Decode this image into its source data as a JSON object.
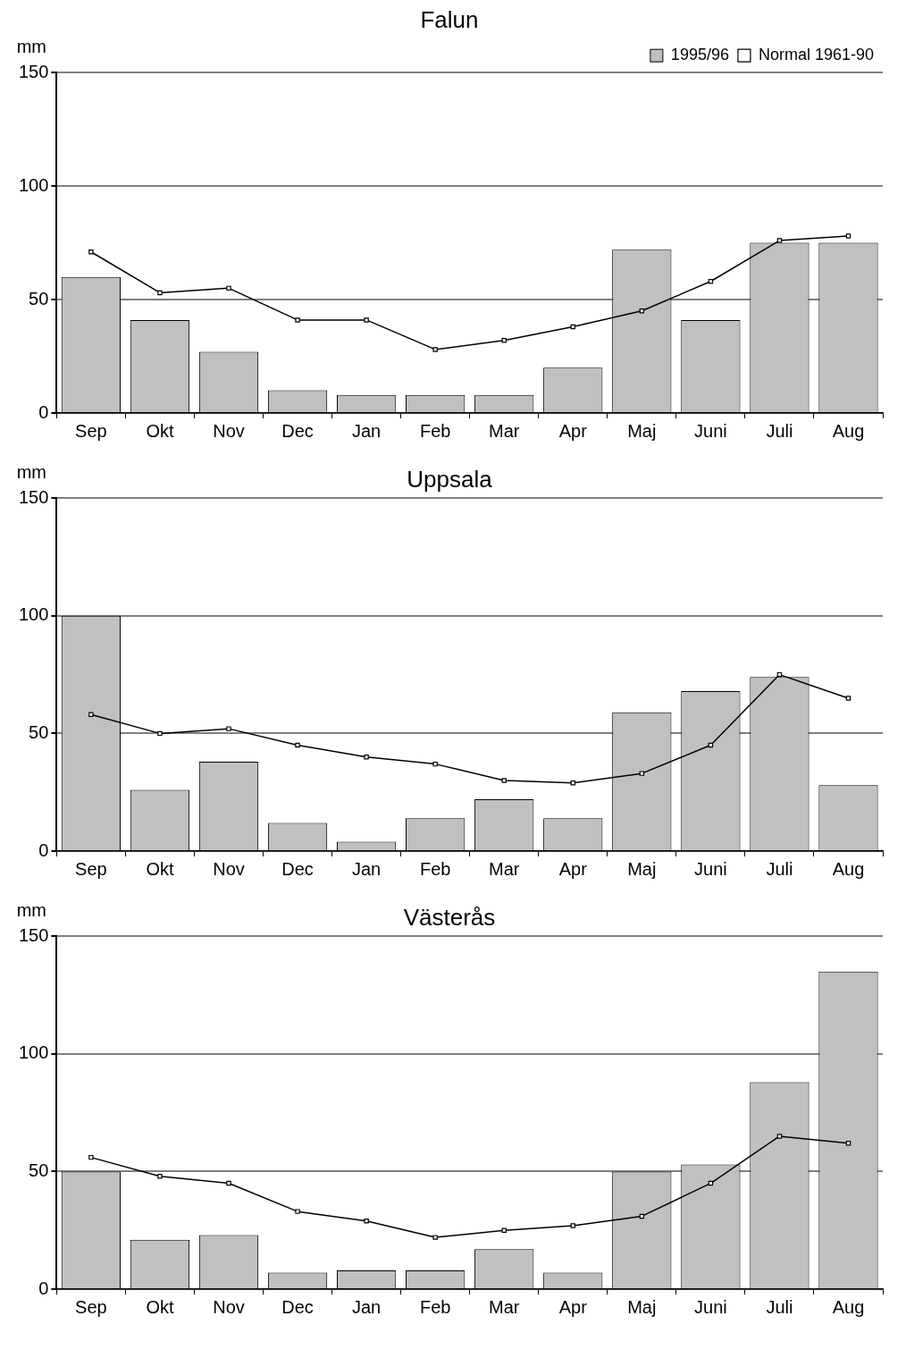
{
  "chart_data": [
    {
      "type": "bar",
      "title": "Falun",
      "ylabel": "mm",
      "categories": [
        "Sep",
        "Okt",
        "Nov",
        "Dec",
        "Jan",
        "Feb",
        "Mar",
        "Apr",
        "Maj",
        "Juni",
        "Juli",
        "Aug"
      ],
      "ylim": [
        0,
        150
      ],
      "yticks": [
        0,
        50,
        100,
        150
      ],
      "grid": "y",
      "legend": "top right",
      "series": [
        {
          "name": "1995/96",
          "color": "#c0c0c0",
          "values": [
            60,
            41,
            27,
            10,
            8,
            8,
            8,
            20,
            72,
            41,
            75,
            75
          ]
        },
        {
          "name": "Normal 1961-90",
          "type": "line",
          "color": "#000000",
          "marker": "square",
          "values": [
            71,
            53,
            55,
            41,
            41,
            28,
            32,
            38,
            45,
            58,
            76,
            78
          ]
        }
      ]
    },
    {
      "type": "bar",
      "title": "Uppsala",
      "ylabel": "mm",
      "categories": [
        "Sep",
        "Okt",
        "Nov",
        "Dec",
        "Jan",
        "Feb",
        "Mar",
        "Apr",
        "Maj",
        "Juni",
        "Juli",
        "Aug"
      ],
      "ylim": [
        0,
        150
      ],
      "yticks": [
        0,
        50,
        100,
        150
      ],
      "grid": "y",
      "series": [
        {
          "color": "#c0c0c0",
          "values": [
            100,
            26,
            38,
            12,
            4,
            14,
            22,
            14,
            59,
            68,
            74,
            28
          ]
        },
        {
          "type": "line",
          "color": "#000000",
          "marker": "square",
          "values": [
            58,
            50,
            52,
            45,
            40,
            37,
            30,
            29,
            33,
            45,
            75,
            65
          ]
        }
      ]
    },
    {
      "type": "bar",
      "title": "Västerås",
      "ylabel": "mm",
      "categories": [
        "Sep",
        "Okt",
        "Nov",
        "Dec",
        "Jan",
        "Feb",
        "Mar",
        "Apr",
        "Maj",
        "Juni",
        "Juli",
        "Aug"
      ],
      "ylim": [
        0,
        150
      ],
      "yticks": [
        0,
        50,
        100,
        150
      ],
      "grid": "y",
      "series": [
        {
          "color": "#c0c0c0",
          "values": [
            50,
            21,
            23,
            7,
            8,
            8,
            17,
            7,
            50,
            53,
            88,
            135
          ]
        },
        {
          "type": "line",
          "color": "#000000",
          "marker": "square",
          "values": [
            56,
            48,
            45,
            33,
            29,
            22,
            25,
            27,
            31,
            45,
            65,
            62
          ]
        }
      ]
    }
  ]
}
